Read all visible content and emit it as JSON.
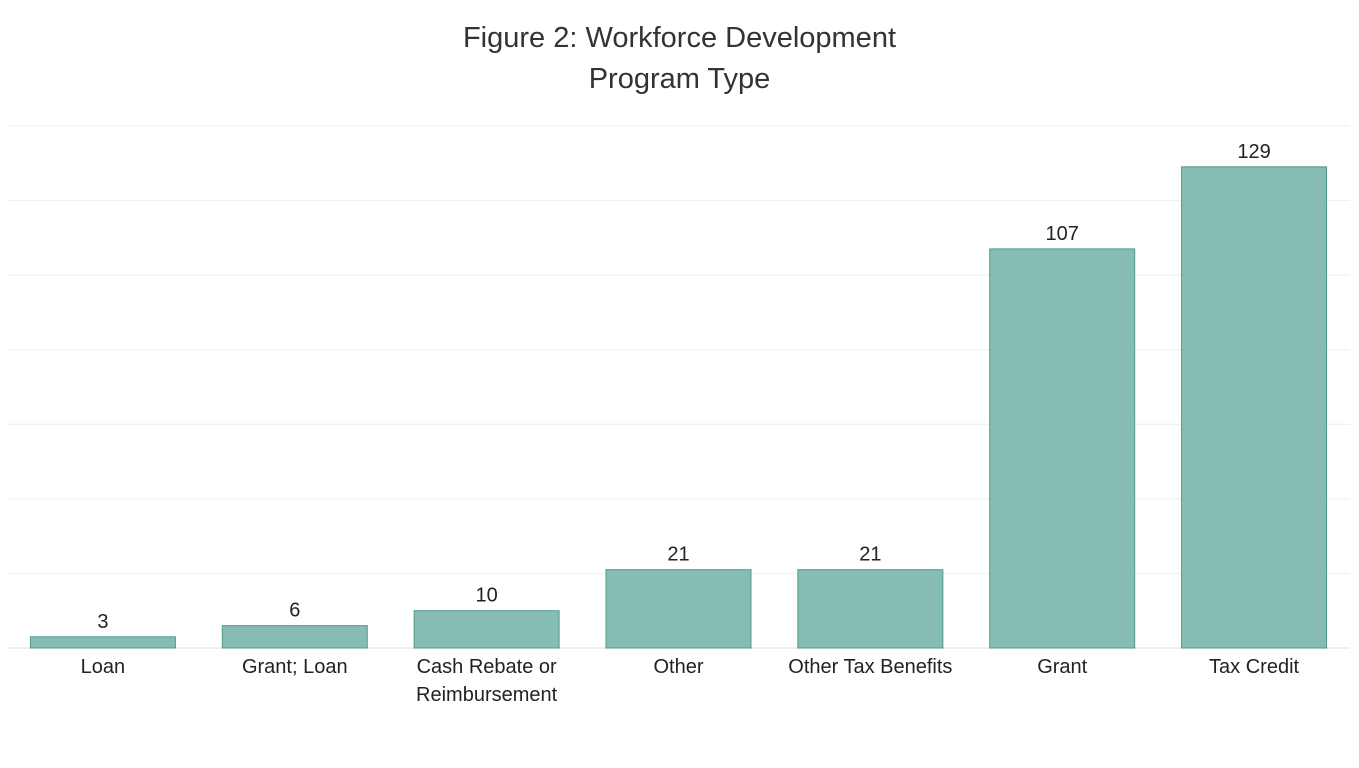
{
  "chart_data": {
    "type": "bar",
    "title_lines": [
      "Figure 2: Workforce Development",
      "Program Type"
    ],
    "categories": [
      [
        "Loan"
      ],
      [
        "Grant; Loan"
      ],
      [
        "Cash Rebate or",
        "Reimbursement"
      ],
      [
        "Other"
      ],
      [
        "Other Tax Benefits"
      ],
      [
        "Grant"
      ],
      [
        "Tax Credit"
      ]
    ],
    "values": [
      3,
      6,
      10,
      21,
      21,
      107,
      129
    ],
    "xlabel": "",
    "ylabel": "",
    "ylim": [
      0,
      140
    ],
    "grid": true,
    "data_labels": true,
    "colors": {
      "bar_fill": "#87bcb4",
      "bar_stroke": "#4e9a8f",
      "grid": "#eeeeee",
      "axis": "#dddddd",
      "text": "#222222"
    }
  }
}
